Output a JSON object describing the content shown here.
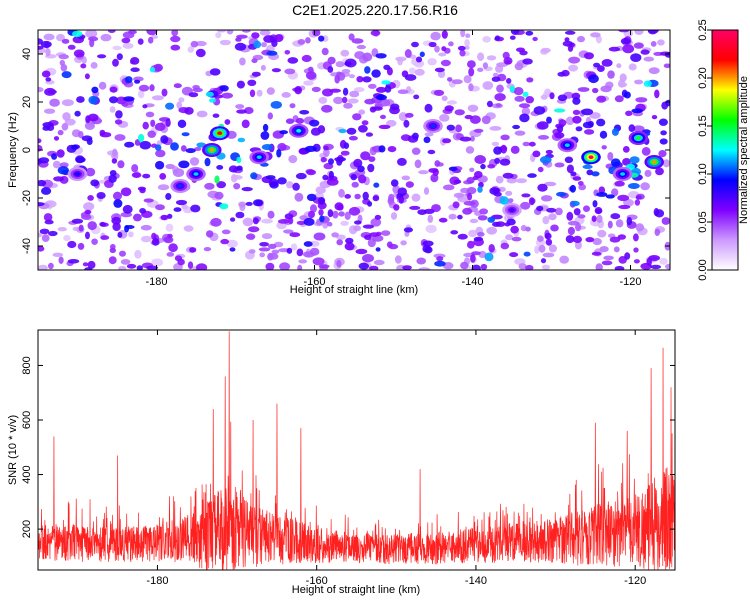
{
  "title": "C2E1.2025.220.17.56.R16",
  "chart_data": [
    {
      "type": "heatmap",
      "xlabel": "Height of straight line (km)",
      "ylabel": "Frequency (Hz)",
      "xlim": [
        -195,
        -115
      ],
      "ylim": [
        -50,
        50
      ],
      "xticks": [
        -180,
        -160,
        -140,
        -120
      ],
      "yticks": [
        -40,
        -20,
        0,
        20,
        40
      ],
      "colorbar": {
        "label": "Normalized spectral amplitude",
        "range": [
          0,
          0.25
        ],
        "ticks": [
          "0.00",
          "0.05",
          "0.10",
          "0.15",
          "0.20",
          "0.25"
        ],
        "colormap": [
          "#ffffff",
          "#cc99ff",
          "#7f00ff",
          "#0000ff",
          "#00ffff",
          "#00ff00",
          "#ffff00",
          "#ff0000",
          "#ff0066"
        ]
      },
      "hotspots": [
        {
          "x": -172,
          "y": 7,
          "amplitude": 0.22
        },
        {
          "x": -173,
          "y": 0,
          "amplitude": 0.2
        },
        {
          "x": -167,
          "y": -3,
          "amplitude": 0.12
        },
        {
          "x": -162,
          "y": 8,
          "amplitude": 0.13
        },
        {
          "x": -175,
          "y": -10,
          "amplitude": 0.12
        },
        {
          "x": -177,
          "y": -15,
          "amplitude": 0.1
        },
        {
          "x": -125,
          "y": -3,
          "amplitude": 0.25
        },
        {
          "x": -119,
          "y": 5,
          "amplitude": 0.16
        },
        {
          "x": -117,
          "y": -5,
          "amplitude": 0.2
        },
        {
          "x": -128,
          "y": 2,
          "amplitude": 0.12
        },
        {
          "x": -121,
          "y": -10,
          "amplitude": 0.12
        },
        {
          "x": -145,
          "y": 10,
          "amplitude": 0.1
        },
        {
          "x": -190,
          "y": -10,
          "amplitude": 0.09
        },
        {
          "x": -135,
          "y": -25,
          "amplitude": 0.08
        }
      ]
    },
    {
      "type": "line",
      "xlabel": "Height of straight line (km)",
      "ylabel": "SNR (10 * v/v)",
      "xlim": [
        -195,
        -115
      ],
      "ylim": [
        50,
        930
      ],
      "xticks": [
        -180,
        -160,
        -140,
        -120
      ],
      "yticks": [
        200,
        400,
        600,
        800
      ],
      "color": "#ff2020",
      "envelope": {
        "x": [
          -195,
          -190,
          -185,
          -180,
          -176,
          -173,
          -171,
          -169,
          -166,
          -163,
          -160,
          -155,
          -150,
          -145,
          -140,
          -135,
          -130,
          -127,
          -124,
          -121,
          -118,
          -116,
          -115
        ],
        "base": [
          150,
          150,
          145,
          150,
          160,
          180,
          200,
          185,
          165,
          155,
          140,
          130,
          125,
          130,
          140,
          150,
          160,
          170,
          180,
          190,
          210,
          230,
          230
        ],
        "amp": [
          120,
          130,
          120,
          130,
          170,
          260,
          340,
          240,
          180,
          150,
          120,
          100,
          100,
          110,
          120,
          130,
          150,
          190,
          210,
          240,
          300,
          340,
          330
        ]
      },
      "peaks": [
        {
          "x": -171,
          "y": 925
        },
        {
          "x": -171.5,
          "y": 760
        },
        {
          "x": -173,
          "y": 640
        },
        {
          "x": -165,
          "y": 660
        },
        {
          "x": -168,
          "y": 600
        },
        {
          "x": -162,
          "y": 570
        },
        {
          "x": -193,
          "y": 540
        },
        {
          "x": -185,
          "y": 470
        },
        {
          "x": -147,
          "y": 420
        },
        {
          "x": -125,
          "y": 590
        },
        {
          "x": -118,
          "y": 790
        },
        {
          "x": -116.5,
          "y": 865
        },
        {
          "x": -115.5,
          "y": 720
        },
        {
          "x": -121,
          "y": 560
        }
      ]
    }
  ]
}
